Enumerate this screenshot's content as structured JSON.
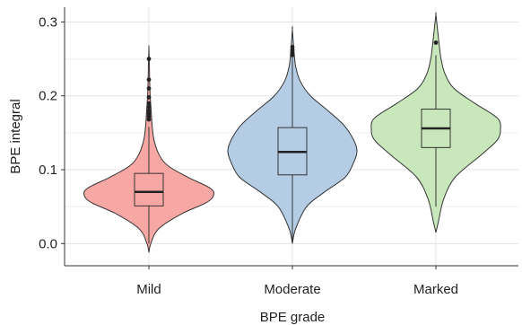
{
  "chart_data": {
    "type": "violin",
    "title": "",
    "xlabel": "BPE grade",
    "ylabel": "BPE integral",
    "categories": [
      "Mild",
      "Moderate",
      "Marked"
    ],
    "ylim": [
      -0.03,
      0.32
    ],
    "yticks": [
      0.0,
      0.1,
      0.2,
      0.3
    ],
    "ytick_labels": [
      "0.0",
      "0.1",
      "0.2",
      "0.3"
    ],
    "grid": true,
    "legend": "none",
    "colors": [
      "#f8a8a4",
      "#b4cce4",
      "#c8e8bc"
    ],
    "stroke_color": "#333333",
    "groups": [
      {
        "name": "Mild",
        "box": {
          "q1": 0.051,
          "median": 0.07,
          "q3": 0.095,
          "whisker_low": 0.0,
          "whisker_high": 0.158
        },
        "outliers": [
          0.168,
          0.172,
          0.176,
          0.18,
          0.185,
          0.19,
          0.198,
          0.21,
          0.222,
          0.25
        ],
        "density": [
          [
            -0.012,
            0.0
          ],
          [
            0.0,
            0.03
          ],
          [
            0.02,
            0.15
          ],
          [
            0.04,
            0.5
          ],
          [
            0.055,
            0.88
          ],
          [
            0.065,
            1.0
          ],
          [
            0.075,
            0.95
          ],
          [
            0.09,
            0.6
          ],
          [
            0.105,
            0.3
          ],
          [
            0.12,
            0.16
          ],
          [
            0.14,
            0.08
          ],
          [
            0.16,
            0.05
          ],
          [
            0.18,
            0.035
          ],
          [
            0.2,
            0.02
          ],
          [
            0.22,
            0.012
          ],
          [
            0.24,
            0.008
          ],
          [
            0.265,
            0.0
          ]
        ]
      },
      {
        "name": "Moderate",
        "box": {
          "q1": 0.093,
          "median": 0.124,
          "q3": 0.157,
          "whisker_low": 0.0,
          "whisker_high": 0.252
        },
        "outliers": [
          0.255,
          0.258,
          0.262,
          0.266
        ],
        "density": [
          [
            0.0,
            0.0
          ],
          [
            0.02,
            0.05
          ],
          [
            0.05,
            0.22
          ],
          [
            0.07,
            0.5
          ],
          [
            0.09,
            0.82
          ],
          [
            0.11,
            0.95
          ],
          [
            0.125,
            1.0
          ],
          [
            0.14,
            0.95
          ],
          [
            0.16,
            0.8
          ],
          [
            0.18,
            0.55
          ],
          [
            0.2,
            0.28
          ],
          [
            0.22,
            0.12
          ],
          [
            0.24,
            0.05
          ],
          [
            0.26,
            0.025
          ],
          [
            0.29,
            0.0
          ]
        ]
      },
      {
        "name": "Marked",
        "box": {
          "q1": 0.13,
          "median": 0.156,
          "q3": 0.182,
          "whisker_low": 0.05,
          "whisker_high": 0.255
        },
        "outliers": [
          0.272
        ],
        "density": [
          [
            0.015,
            0.0
          ],
          [
            0.03,
            0.04
          ],
          [
            0.06,
            0.12
          ],
          [
            0.09,
            0.3
          ],
          [
            0.12,
            0.7
          ],
          [
            0.14,
            0.95
          ],
          [
            0.155,
            1.0
          ],
          [
            0.17,
            0.95
          ],
          [
            0.19,
            0.6
          ],
          [
            0.21,
            0.28
          ],
          [
            0.23,
            0.14
          ],
          [
            0.25,
            0.08
          ],
          [
            0.27,
            0.05
          ],
          [
            0.29,
            0.025
          ],
          [
            0.31,
            0.0
          ]
        ]
      }
    ]
  }
}
